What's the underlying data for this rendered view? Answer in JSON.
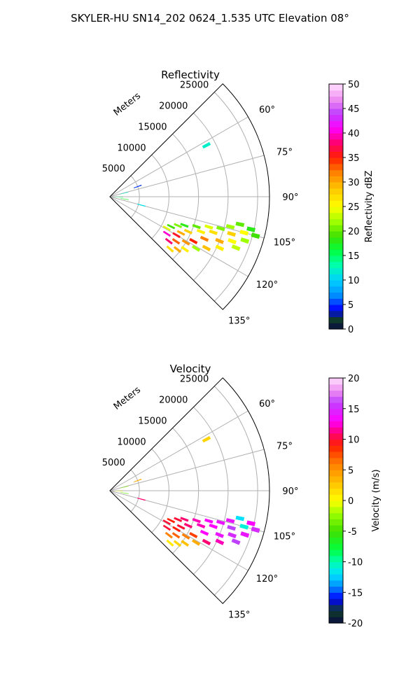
{
  "figure": {
    "title": "SKYLER-HU  SN14_202  0624_1.535 UTC Elevation 08°"
  },
  "chart_data": [
    {
      "type": "heatmap",
      "projection": "polar-sector",
      "title": "Reflectivity",
      "range_label": "Meters",
      "range_ticks": [
        5000,
        10000,
        15000,
        20000,
        25000
      ],
      "rmax": 27000,
      "angle_range_deg": [
        45,
        135
      ],
      "angle_ticks": [
        60,
        75,
        90,
        105,
        120,
        135
      ],
      "angle_tick_labels": [
        "60°",
        "75°",
        "90°",
        "105°",
        "120°",
        "135°"
      ],
      "grid": true,
      "colorbar": {
        "label": "Reflectivity dBZ",
        "min": 0,
        "max": 50,
        "ticks": [
          0,
          5,
          10,
          15,
          20,
          25,
          30,
          35,
          40,
          45,
          50
        ],
        "stops": [
          [
            0,
            "#0a0a40"
          ],
          [
            2,
            "#0f3d2a"
          ],
          [
            4,
            "#0000ff"
          ],
          [
            7,
            "#0090ff"
          ],
          [
            10,
            "#00d0ff"
          ],
          [
            13,
            "#00ffb0"
          ],
          [
            16,
            "#00ff40"
          ],
          [
            19,
            "#40e000"
          ],
          [
            22,
            "#a0ff00"
          ],
          [
            25,
            "#ffff00"
          ],
          [
            29,
            "#ffc000"
          ],
          [
            32,
            "#ff8000"
          ],
          [
            35,
            "#ff2000"
          ],
          [
            38,
            "#ff0070"
          ],
          [
            41,
            "#ff00ff"
          ],
          [
            44,
            "#c040ff"
          ],
          [
            47,
            "#f090f0"
          ],
          [
            50,
            "#ffe0ff"
          ]
        ]
      },
      "cells": [
        {
          "r": 22500,
          "az": 102,
          "v": 20
        },
        {
          "r": 24500,
          "az": 103,
          "v": 18
        },
        {
          "r": 21000,
          "az": 104,
          "v": 22
        },
        {
          "r": 23500,
          "az": 105,
          "v": 25
        },
        {
          "r": 25500,
          "az": 105,
          "v": 19
        },
        {
          "r": 19500,
          "az": 106,
          "v": 21
        },
        {
          "r": 17500,
          "az": 107,
          "v": 24
        },
        {
          "r": 21500,
          "az": 107,
          "v": 28
        },
        {
          "r": 24000,
          "az": 108,
          "v": 22
        },
        {
          "r": 15500,
          "az": 109,
          "v": 20
        },
        {
          "r": 18500,
          "az": 109,
          "v": 27
        },
        {
          "r": 22000,
          "az": 110,
          "v": 25
        },
        {
          "r": 13500,
          "az": 111,
          "v": 18
        },
        {
          "r": 16500,
          "az": 111,
          "v": 26
        },
        {
          "r": 20000,
          "az": 112,
          "v": 30
        },
        {
          "r": 23000,
          "az": 112,
          "v": 23
        },
        {
          "r": 12500,
          "az": 113,
          "v": 21
        },
        {
          "r": 14500,
          "az": 114,
          "v": 28
        },
        {
          "r": 17500,
          "az": 114,
          "v": 32
        },
        {
          "r": 20500,
          "az": 115,
          "v": 26
        },
        {
          "r": 11500,
          "az": 116,
          "v": 19
        },
        {
          "r": 13500,
          "az": 117,
          "v": 30
        },
        {
          "r": 16000,
          "az": 118,
          "v": 35
        },
        {
          "r": 18500,
          "az": 118,
          "v": 29
        },
        {
          "r": 11000,
          "az": 119,
          "v": 24
        },
        {
          "r": 13000,
          "az": 120,
          "v": 36
        },
        {
          "r": 15000,
          "az": 121,
          "v": 31
        },
        {
          "r": 17000,
          "az": 121,
          "v": 22
        },
        {
          "r": 11500,
          "az": 123,
          "v": 40
        },
        {
          "r": 13500,
          "az": 124,
          "v": 33
        },
        {
          "r": 15500,
          "az": 125,
          "v": 26
        },
        {
          "r": 12500,
          "az": 127,
          "v": 38
        },
        {
          "r": 14500,
          "az": 128,
          "v": 30
        },
        {
          "r": 13500,
          "az": 131,
          "v": 27
        },
        {
          "r": 2500,
          "az": 76,
          "v": 12
        },
        {
          "r": 1500,
          "az": 92,
          "v": 15
        },
        {
          "r": 2500,
          "az": 99,
          "v": 17
        },
        {
          "r": 5500,
          "az": 105,
          "v": 11
        },
        {
          "r": 5000,
          "az": 70,
          "v": 5
        },
        {
          "r": 18500,
          "az": 62,
          "v": 12
        }
      ]
    },
    {
      "type": "heatmap",
      "projection": "polar-sector",
      "title": "Velocity",
      "range_label": "Meters",
      "range_ticks": [
        5000,
        10000,
        15000,
        20000,
        25000
      ],
      "rmax": 27000,
      "angle_range_deg": [
        45,
        135
      ],
      "angle_ticks": [
        60,
        75,
        90,
        105,
        120,
        135
      ],
      "angle_tick_labels": [
        "60°",
        "75°",
        "90°",
        "105°",
        "120°",
        "135°"
      ],
      "grid": true,
      "colorbar": {
        "label": "Velocity (m/s)",
        "min": -20,
        "max": 20,
        "ticks": [
          -20,
          -15,
          -10,
          -5,
          0,
          5,
          10,
          15,
          20
        ],
        "stops": [
          [
            -20,
            "#0a0a40"
          ],
          [
            -18,
            "#0f3d2a"
          ],
          [
            -16,
            "#0000ff"
          ],
          [
            -14,
            "#0090ff"
          ],
          [
            -12,
            "#00e0ff"
          ],
          [
            -10,
            "#00ffb0"
          ],
          [
            -8,
            "#00ff40"
          ],
          [
            -5,
            "#40e000"
          ],
          [
            -2,
            "#a0ff00"
          ],
          [
            0,
            "#ffff00"
          ],
          [
            3,
            "#ffc000"
          ],
          [
            6,
            "#ff8000"
          ],
          [
            9,
            "#ff2000"
          ],
          [
            11,
            "#ff0070"
          ],
          [
            13,
            "#ff00ff"
          ],
          [
            16,
            "#c040ff"
          ],
          [
            18,
            "#f090f0"
          ],
          [
            20,
            "#ffe0ff"
          ]
        ]
      },
      "cells": [
        {
          "r": 22500,
          "az": 102,
          "v": -12
        },
        {
          "r": 24500,
          "az": 103,
          "v": 13
        },
        {
          "r": 21000,
          "az": 104,
          "v": 14
        },
        {
          "r": 23500,
          "az": 105,
          "v": -11
        },
        {
          "r": 25500,
          "az": 105,
          "v": 15
        },
        {
          "r": 19500,
          "az": 106,
          "v": 14
        },
        {
          "r": 17500,
          "az": 107,
          "v": 13
        },
        {
          "r": 21500,
          "az": 107,
          "v": 16
        },
        {
          "r": 24000,
          "az": 108,
          "v": 14
        },
        {
          "r": 15500,
          "az": 109,
          "v": 12
        },
        {
          "r": 18500,
          "az": 109,
          "v": 13
        },
        {
          "r": 22000,
          "az": 110,
          "v": 15
        },
        {
          "r": 13500,
          "az": 111,
          "v": 11
        },
        {
          "r": 16500,
          "az": 111,
          "v": 12
        },
        {
          "r": 20000,
          "az": 112,
          "v": 14
        },
        {
          "r": 23000,
          "az": 112,
          "v": 16
        },
        {
          "r": 12500,
          "az": 113,
          "v": 10
        },
        {
          "r": 14500,
          "az": 114,
          "v": 11
        },
        {
          "r": 17500,
          "az": 114,
          "v": 13
        },
        {
          "r": 20500,
          "az": 115,
          "v": 12
        },
        {
          "r": 11500,
          "az": 116,
          "v": 9
        },
        {
          "r": 13500,
          "az": 117,
          "v": 10
        },
        {
          "r": 16000,
          "az": 118,
          "v": 8
        },
        {
          "r": 18500,
          "az": 118,
          "v": 11
        },
        {
          "r": 11000,
          "az": 119,
          "v": 10
        },
        {
          "r": 13000,
          "az": 120,
          "v": 9
        },
        {
          "r": 15000,
          "az": 121,
          "v": 6
        },
        {
          "r": 17000,
          "az": 121,
          "v": 4
        },
        {
          "r": 11500,
          "az": 123,
          "v": 10
        },
        {
          "r": 13500,
          "az": 124,
          "v": 7
        },
        {
          "r": 15500,
          "az": 125,
          "v": 3
        },
        {
          "r": 12500,
          "az": 127,
          "v": 6
        },
        {
          "r": 14500,
          "az": 128,
          "v": 2
        },
        {
          "r": 13500,
          "az": 131,
          "v": 1
        },
        {
          "r": 2500,
          "az": 76,
          "v": -3
        },
        {
          "r": 1500,
          "az": 92,
          "v": 0
        },
        {
          "r": 2500,
          "az": 99,
          "v": -4
        },
        {
          "r": 5500,
          "az": 105,
          "v": 11
        },
        {
          "r": 5000,
          "az": 70,
          "v": 4
        },
        {
          "r": 18500,
          "az": 62,
          "v": 2
        }
      ]
    }
  ]
}
